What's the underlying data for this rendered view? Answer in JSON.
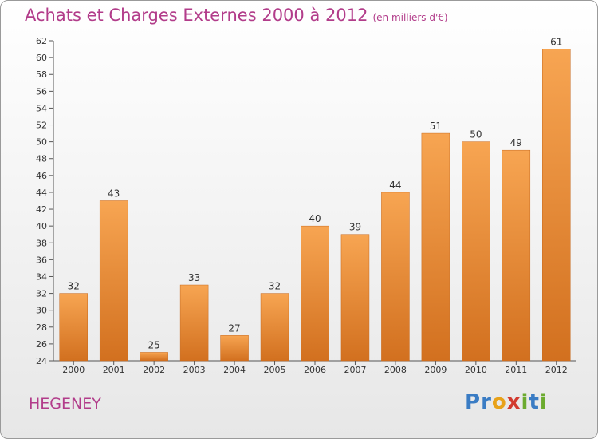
{
  "header": {
    "title": "Achats et Charges Externes 2000 à 2012",
    "subtitle": "(en milliers d'€)"
  },
  "commune": "HEGENEY",
  "logo": {
    "text": "Proxiti",
    "letters": [
      {
        "ch": "P",
        "color": "#3a7cc4"
      },
      {
        "ch": "r",
        "color": "#3a7cc4"
      },
      {
        "ch": "o",
        "color": "#e8a21a"
      },
      {
        "ch": "x",
        "color": "#d23a2f"
      },
      {
        "ch": "i",
        "color": "#6cab2f"
      },
      {
        "ch": "t",
        "color": "#3a7cc4"
      },
      {
        "ch": "i",
        "color": "#6cab2f"
      }
    ]
  },
  "colors": {
    "title": "#b23c8a",
    "bar_light": "#f7a552",
    "bar_dark": "#d2701f",
    "axis": "#555555",
    "grid": "#cccccc"
  },
  "chart_data": {
    "type": "bar",
    "title": "Achats et Charges Externes 2000 à 2012",
    "subtitle": "(en milliers d'€)",
    "categories": [
      "2000",
      "2001",
      "2002",
      "2003",
      "2004",
      "2005",
      "2006",
      "2007",
      "2008",
      "2009",
      "2010",
      "2011",
      "2012"
    ],
    "values": [
      32,
      43,
      25,
      33,
      27,
      32,
      40,
      39,
      44,
      51,
      50,
      49,
      61
    ],
    "ylim": [
      24,
      62
    ],
    "ytick_step": 2,
    "grid": false,
    "data_labels": true
  }
}
